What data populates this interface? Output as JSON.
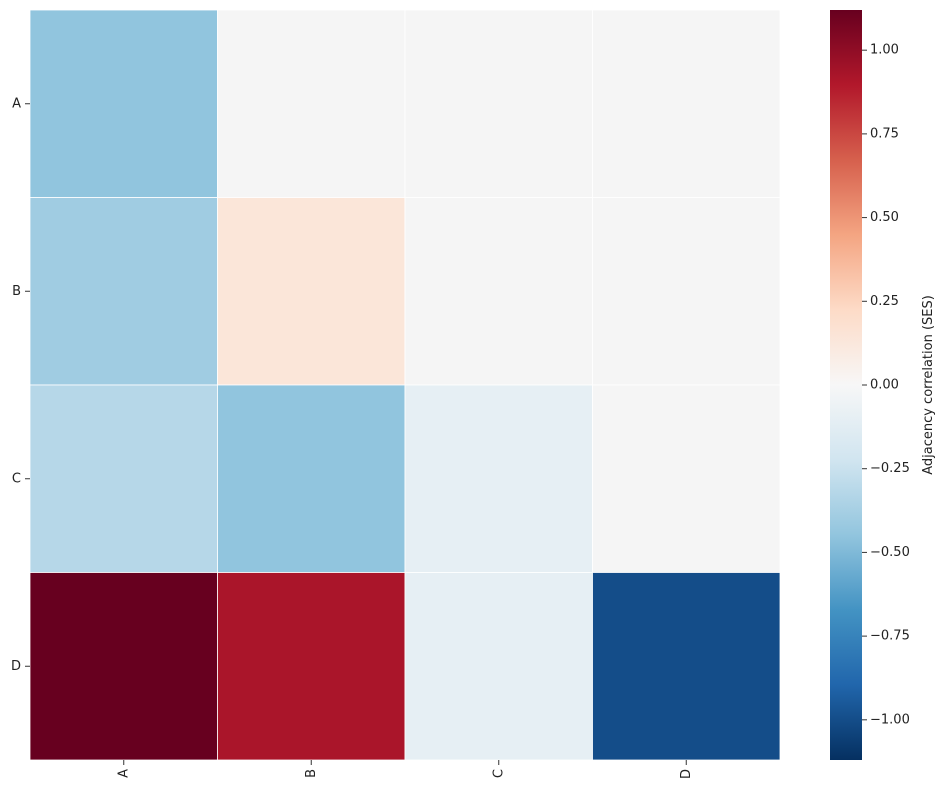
{
  "chart_data": {
    "type": "heatmap",
    "x_categories": [
      "A",
      "B",
      "C",
      "D"
    ],
    "y_categories": [
      "A",
      "B",
      "C",
      "D"
    ],
    "matrix": [
      [
        -0.45,
        0.0,
        0.0,
        0.0
      ],
      [
        -0.4,
        0.14,
        0.0,
        0.0
      ],
      [
        -0.32,
        -0.45,
        -0.1,
        0.0
      ],
      [
        1.12,
        0.92,
        -0.1,
        -1.0
      ]
    ],
    "mask": [
      [
        false,
        true,
        true,
        true
      ],
      [
        false,
        false,
        true,
        true
      ],
      [
        false,
        false,
        false,
        true
      ],
      [
        false,
        false,
        false,
        false
      ]
    ],
    "colorbar": {
      "label": "Adjacency correlation (SES)",
      "vmin": -1.12,
      "vmax": 1.12,
      "ticks": [
        1.0,
        0.75,
        0.5,
        0.25,
        0.0,
        -0.25,
        -0.5,
        -0.75,
        -1.0
      ],
      "tick_labels": [
        "1.00",
        "0.75",
        "0.50",
        "0.25",
        "0.00",
        "−0.25",
        "−0.50",
        "−0.75",
        "−1.00"
      ],
      "colormap": "RdBu_r"
    },
    "masked_color": "#f5f5f5",
    "xlabel": "",
    "ylabel": "",
    "title": ""
  }
}
